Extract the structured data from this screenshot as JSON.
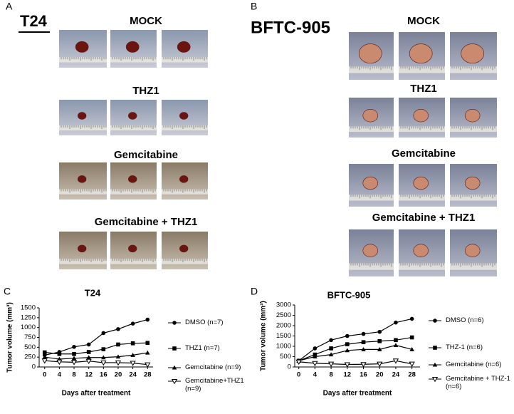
{
  "panels": {
    "A": {
      "label": "A",
      "cell_line": "T24",
      "groups": [
        "MOCK",
        "THZ1",
        "Gemcitabine",
        "Gemcitabine + THZ1"
      ]
    },
    "B": {
      "label": "B",
      "cell_line": "BFTC-905",
      "groups": [
        "MOCK",
        "THZ1",
        "Gemcitabine",
        "Gemcitabine + THZ1"
      ]
    }
  },
  "chart_data": [
    {
      "type": "line",
      "panel": "C",
      "title": "T24",
      "x_label": "Days after treatment",
      "y_label": "Tumor volume (mm³)",
      "x": [
        0,
        4,
        8,
        12,
        16,
        20,
        24,
        28
      ],
      "xlim": [
        -1.5,
        29.5
      ],
      "xticks": [
        0,
        4,
        8,
        12,
        16,
        20,
        24,
        28
      ],
      "ylim": [
        0,
        1500
      ],
      "yticks": [
        0,
        250,
        500,
        750,
        1000,
        1250,
        1500
      ],
      "series": [
        {
          "name": "DMSO (n=7)",
          "color": "#000000",
          "marker": "circle",
          "values": [
            300,
            380,
            510,
            570,
            860,
            960,
            1100,
            1200
          ]
        },
        {
          "name": "THZ1 (n=7)",
          "color": "#000000",
          "marker": "square",
          "values": [
            370,
            330,
            330,
            380,
            450,
            570,
            600,
            610
          ]
        },
        {
          "name": "Gemcitabine (n=9)",
          "color": "#000000",
          "marker": "triangle",
          "values": [
            250,
            200,
            220,
            240,
            240,
            260,
            300,
            360
          ]
        },
        {
          "name": "Gemcitabine+THZ1 (n=9)",
          "color": "#000000",
          "marker": "triangle-down",
          "values": [
            160,
            130,
            120,
            150,
            110,
            110,
            100,
            60
          ]
        }
      ]
    },
    {
      "type": "line",
      "panel": "D",
      "title": "BFTC-905",
      "x_label": "Days after treatment",
      "y_label": "Tumor volume (mm³)",
      "x": [
        0,
        4,
        8,
        12,
        16,
        20,
        24,
        28
      ],
      "xlim": [
        -1,
        30
      ],
      "xticks": [
        0,
        4,
        8,
        12,
        16,
        20,
        24,
        28
      ],
      "ylim": [
        0,
        3000
      ],
      "yticks": [
        0,
        500,
        1000,
        1500,
        2000,
        2500,
        3000
      ],
      "series": [
        {
          "name": "DMSO (n=6)",
          "color": "#000000",
          "marker": "circle",
          "values": [
            300,
            900,
            1300,
            1500,
            1600,
            1700,
            2150,
            2330
          ]
        },
        {
          "name": "THZ-1 (n=6)",
          "color": "#000000",
          "marker": "square",
          "values": [
            300,
            600,
            900,
            1100,
            1200,
            1250,
            1300,
            1430
          ]
        },
        {
          "name": "Gemcitabine (n=6)",
          "color": "#000000",
          "marker": "triangle",
          "values": [
            300,
            500,
            600,
            800,
            850,
            850,
            1050,
            850
          ]
        },
        {
          "name": "Gemcitabine + THZ-1 (n=6)",
          "color": "#000000",
          "marker": "triangle-down",
          "values": [
            250,
            180,
            150,
            120,
            130,
            150,
            300,
            150
          ]
        }
      ]
    }
  ]
}
